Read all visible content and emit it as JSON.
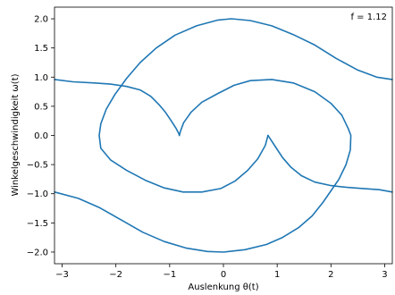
{
  "chart_data": {
    "type": "line",
    "title": "",
    "xlabel": "Auslenkung θ(t)",
    "ylabel": "Winkelgeschwindigkeit ω(t)",
    "annotation": "f = 1.12",
    "annotation_position": "top-right",
    "xlim": [
      -3.1416,
      3.1416
    ],
    "ylim": [
      -2.2,
      2.2
    ],
    "xticks": [
      -3,
      -2,
      -1,
      0,
      1,
      2,
      3
    ],
    "xtick_labels": [
      "−3",
      "−2",
      "−1",
      "0",
      "1",
      "2",
      "3"
    ],
    "yticks": [
      -2.0,
      -1.5,
      -1.0,
      -0.5,
      0.0,
      0.5,
      1.0,
      1.5,
      2.0
    ],
    "ytick_labels": [
      "−2.0",
      "−1.5",
      "−1.0",
      "−0.5",
      "0.0",
      "0.5",
      "1.0",
      "1.5",
      "2.0"
    ],
    "grid": false,
    "legend": "none",
    "color": "#1f77b4",
    "series": [
      {
        "segments": [
          [
            [
              -3.14,
              0.96
            ],
            [
              -2.8,
              0.92
            ],
            [
              -2.4,
              0.9
            ],
            [
              -2.1,
              0.88
            ],
            [
              -1.8,
              0.84
            ],
            [
              -1.55,
              0.78
            ],
            [
              -1.35,
              0.67
            ],
            [
              -1.2,
              0.53
            ],
            [
              -1.08,
              0.4
            ],
            [
              -0.97,
              0.25
            ],
            [
              -0.88,
              0.12
            ],
            [
              -0.83,
              0.03
            ],
            [
              -0.82,
              0.0
            ]
          ],
          [
            [
              -0.82,
              0.0
            ],
            [
              -0.8,
              0.07
            ],
            [
              -0.74,
              0.22
            ],
            [
              -0.6,
              0.4
            ],
            [
              -0.4,
              0.57
            ],
            [
              -0.1,
              0.72
            ],
            [
              0.2,
              0.86
            ],
            [
              0.5,
              0.94
            ],
            [
              0.9,
              0.96
            ],
            [
              1.3,
              0.9
            ],
            [
              1.7,
              0.75
            ],
            [
              2.0,
              0.55
            ],
            [
              2.2,
              0.35
            ],
            [
              2.32,
              0.12
            ],
            [
              2.37,
              0.0
            ],
            [
              2.36,
              -0.25
            ],
            [
              2.28,
              -0.5
            ],
            [
              2.15,
              -0.75
            ],
            [
              2.0,
              -0.95
            ],
            [
              1.85,
              -1.15
            ],
            [
              1.65,
              -1.38
            ],
            [
              1.4,
              -1.58
            ],
            [
              1.1,
              -1.75
            ],
            [
              0.8,
              -1.87
            ],
            [
              0.4,
              -1.96
            ],
            [
              0.0,
              -2.0
            ],
            [
              -0.3,
              -1.99
            ],
            [
              -0.7,
              -1.93
            ],
            [
              -1.1,
              -1.82
            ],
            [
              -1.5,
              -1.66
            ],
            [
              -1.9,
              -1.45
            ],
            [
              -2.3,
              -1.24
            ],
            [
              -2.7,
              -1.08
            ],
            [
              -3.14,
              -0.97
            ]
          ],
          [
            [
              3.14,
              -0.97
            ],
            [
              2.9,
              -0.93
            ],
            [
              2.6,
              -0.91
            ],
            [
              2.3,
              -0.89
            ],
            [
              2.0,
              -0.86
            ],
            [
              1.7,
              -0.8
            ],
            [
              1.45,
              -0.69
            ],
            [
              1.25,
              -0.54
            ],
            [
              1.1,
              -0.38
            ],
            [
              0.97,
              -0.2
            ],
            [
              0.88,
              -0.07
            ],
            [
              0.83,
              0.0
            ]
          ],
          [
            [
              0.83,
              0.0
            ],
            [
              0.78,
              -0.17
            ],
            [
              0.64,
              -0.4
            ],
            [
              0.45,
              -0.6
            ],
            [
              0.22,
              -0.78
            ],
            [
              -0.05,
              -0.91
            ],
            [
              -0.4,
              -0.97
            ],
            [
              -0.75,
              -0.97
            ],
            [
              -1.1,
              -0.9
            ],
            [
              -1.45,
              -0.77
            ],
            [
              -1.8,
              -0.6
            ],
            [
              -2.1,
              -0.42
            ],
            [
              -2.28,
              -0.22
            ],
            [
              -2.31,
              0.0
            ],
            [
              -2.28,
              0.2
            ],
            [
              -2.18,
              0.45
            ],
            [
              -2.02,
              0.7
            ],
            [
              -1.8,
              0.98
            ],
            [
              -1.55,
              1.25
            ],
            [
              -1.25,
              1.5
            ],
            [
              -0.9,
              1.72
            ],
            [
              -0.5,
              1.88
            ],
            [
              -0.1,
              1.98
            ],
            [
              0.15,
              2.0
            ],
            [
              0.5,
              1.97
            ],
            [
              0.9,
              1.88
            ],
            [
              1.3,
              1.73
            ],
            [
              1.7,
              1.55
            ],
            [
              2.1,
              1.32
            ],
            [
              2.5,
              1.12
            ],
            [
              2.85,
              1.0
            ],
            [
              3.14,
              0.96
            ]
          ]
        ]
      }
    ]
  }
}
